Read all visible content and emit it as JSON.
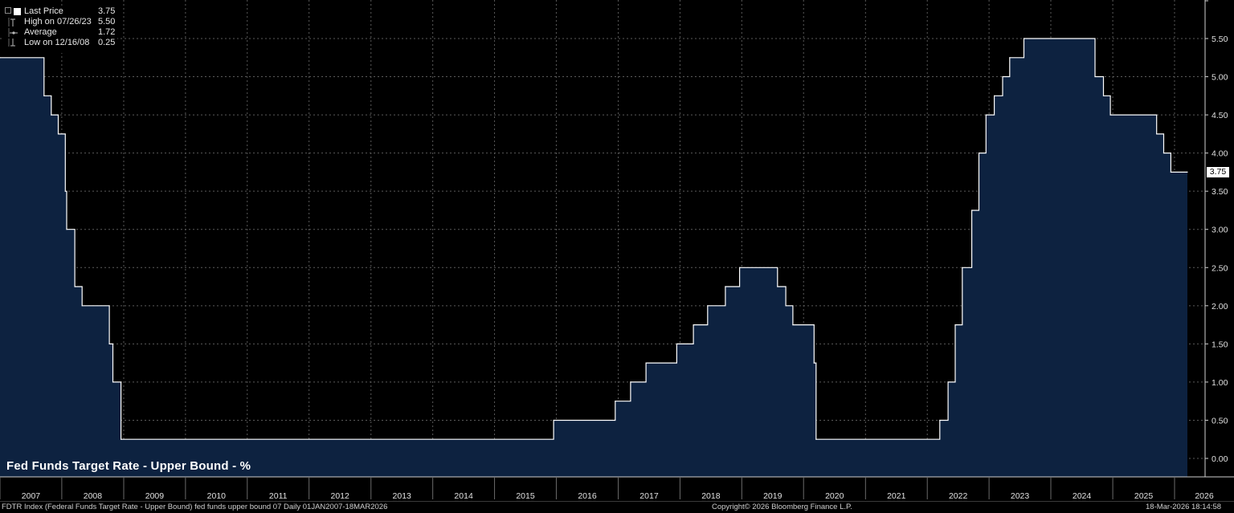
{
  "legend": {
    "items": [
      {
        "label": "Last Price",
        "value": "3.75",
        "icon": "white-square-icon"
      },
      {
        "label": "High on 07/26/23",
        "value": "5.50",
        "icon": "high-marker-icon"
      },
      {
        "label": "Average",
        "value": "1.72",
        "icon": "average-marker-icon"
      },
      {
        "label": "Low on 12/16/08",
        "value": "0.25",
        "icon": "low-marker-icon"
      }
    ]
  },
  "last_value_label": "3.75",
  "footer": {
    "left": "FDTR Index (Federal Funds Target Rate - Upper Bound) fed funds upper bound 07 Daily 01JAN2007-18MAR2026",
    "center": "Copyright© 2026 Bloomberg Finance L.P.",
    "right": "18-Mar-2026 18:14:58"
  },
  "colors": {
    "background": "#000000",
    "area_fill": "#0d2240",
    "line": "#ffffff",
    "grid": "#5a5a5a"
  },
  "chart_data": {
    "type": "area",
    "title": "Fed Funds Target Rate - Upper Bound - %",
    "xlabel": "",
    "ylabel": "",
    "ylim": [
      0,
      5.5
    ],
    "y_ticks": [
      "0.00",
      "0.50",
      "1.00",
      "1.50",
      "2.00",
      "2.50",
      "3.00",
      "3.50",
      "4.00",
      "4.50",
      "5.00",
      "5.50"
    ],
    "x_ticks": [
      "2007",
      "2008",
      "2009",
      "2010",
      "2011",
      "2012",
      "2013",
      "2014",
      "2015",
      "2016",
      "2017",
      "2018",
      "2019",
      "2020",
      "2021",
      "2022",
      "2023",
      "2024",
      "2025",
      "2026"
    ],
    "x_range": [
      "2007-01-01",
      "2026-03-18"
    ],
    "grid": true,
    "series": [
      {
        "step": true,
        "points": [
          [
            "2007-01-01",
            5.25
          ],
          [
            "2007-09-18",
            4.75
          ],
          [
            "2007-10-31",
            4.5
          ],
          [
            "2007-12-11",
            4.25
          ],
          [
            "2008-01-22",
            3.5
          ],
          [
            "2008-01-30",
            3.0
          ],
          [
            "2008-03-18",
            2.25
          ],
          [
            "2008-04-30",
            2.0
          ],
          [
            "2008-10-08",
            1.5
          ],
          [
            "2008-10-29",
            1.0
          ],
          [
            "2008-12-16",
            0.25
          ],
          [
            "2015-12-16",
            0.5
          ],
          [
            "2016-12-14",
            0.75
          ],
          [
            "2017-03-15",
            1.0
          ],
          [
            "2017-06-14",
            1.25
          ],
          [
            "2017-12-13",
            1.5
          ],
          [
            "2018-03-21",
            1.75
          ],
          [
            "2018-06-13",
            2.0
          ],
          [
            "2018-09-26",
            2.25
          ],
          [
            "2018-12-19",
            2.5
          ],
          [
            "2019-07-31",
            2.25
          ],
          [
            "2019-09-18",
            2.0
          ],
          [
            "2019-10-30",
            1.75
          ],
          [
            "2020-03-03",
            1.25
          ],
          [
            "2020-03-15",
            0.25
          ],
          [
            "2022-03-16",
            0.5
          ],
          [
            "2022-05-04",
            1.0
          ],
          [
            "2022-06-15",
            1.75
          ],
          [
            "2022-07-27",
            2.5
          ],
          [
            "2022-09-21",
            3.25
          ],
          [
            "2022-11-02",
            4.0
          ],
          [
            "2022-12-14",
            4.5
          ],
          [
            "2023-02-01",
            4.75
          ],
          [
            "2023-03-22",
            5.0
          ],
          [
            "2023-05-03",
            5.25
          ],
          [
            "2023-07-26",
            5.5
          ],
          [
            "2024-09-18",
            5.0
          ],
          [
            "2024-11-07",
            4.75
          ],
          [
            "2024-12-18",
            4.5
          ],
          [
            "2025-09-17",
            4.25
          ],
          [
            "2025-10-29",
            4.0
          ],
          [
            "2025-12-10",
            3.75
          ],
          [
            "2026-03-18",
            3.75
          ]
        ]
      }
    ]
  }
}
